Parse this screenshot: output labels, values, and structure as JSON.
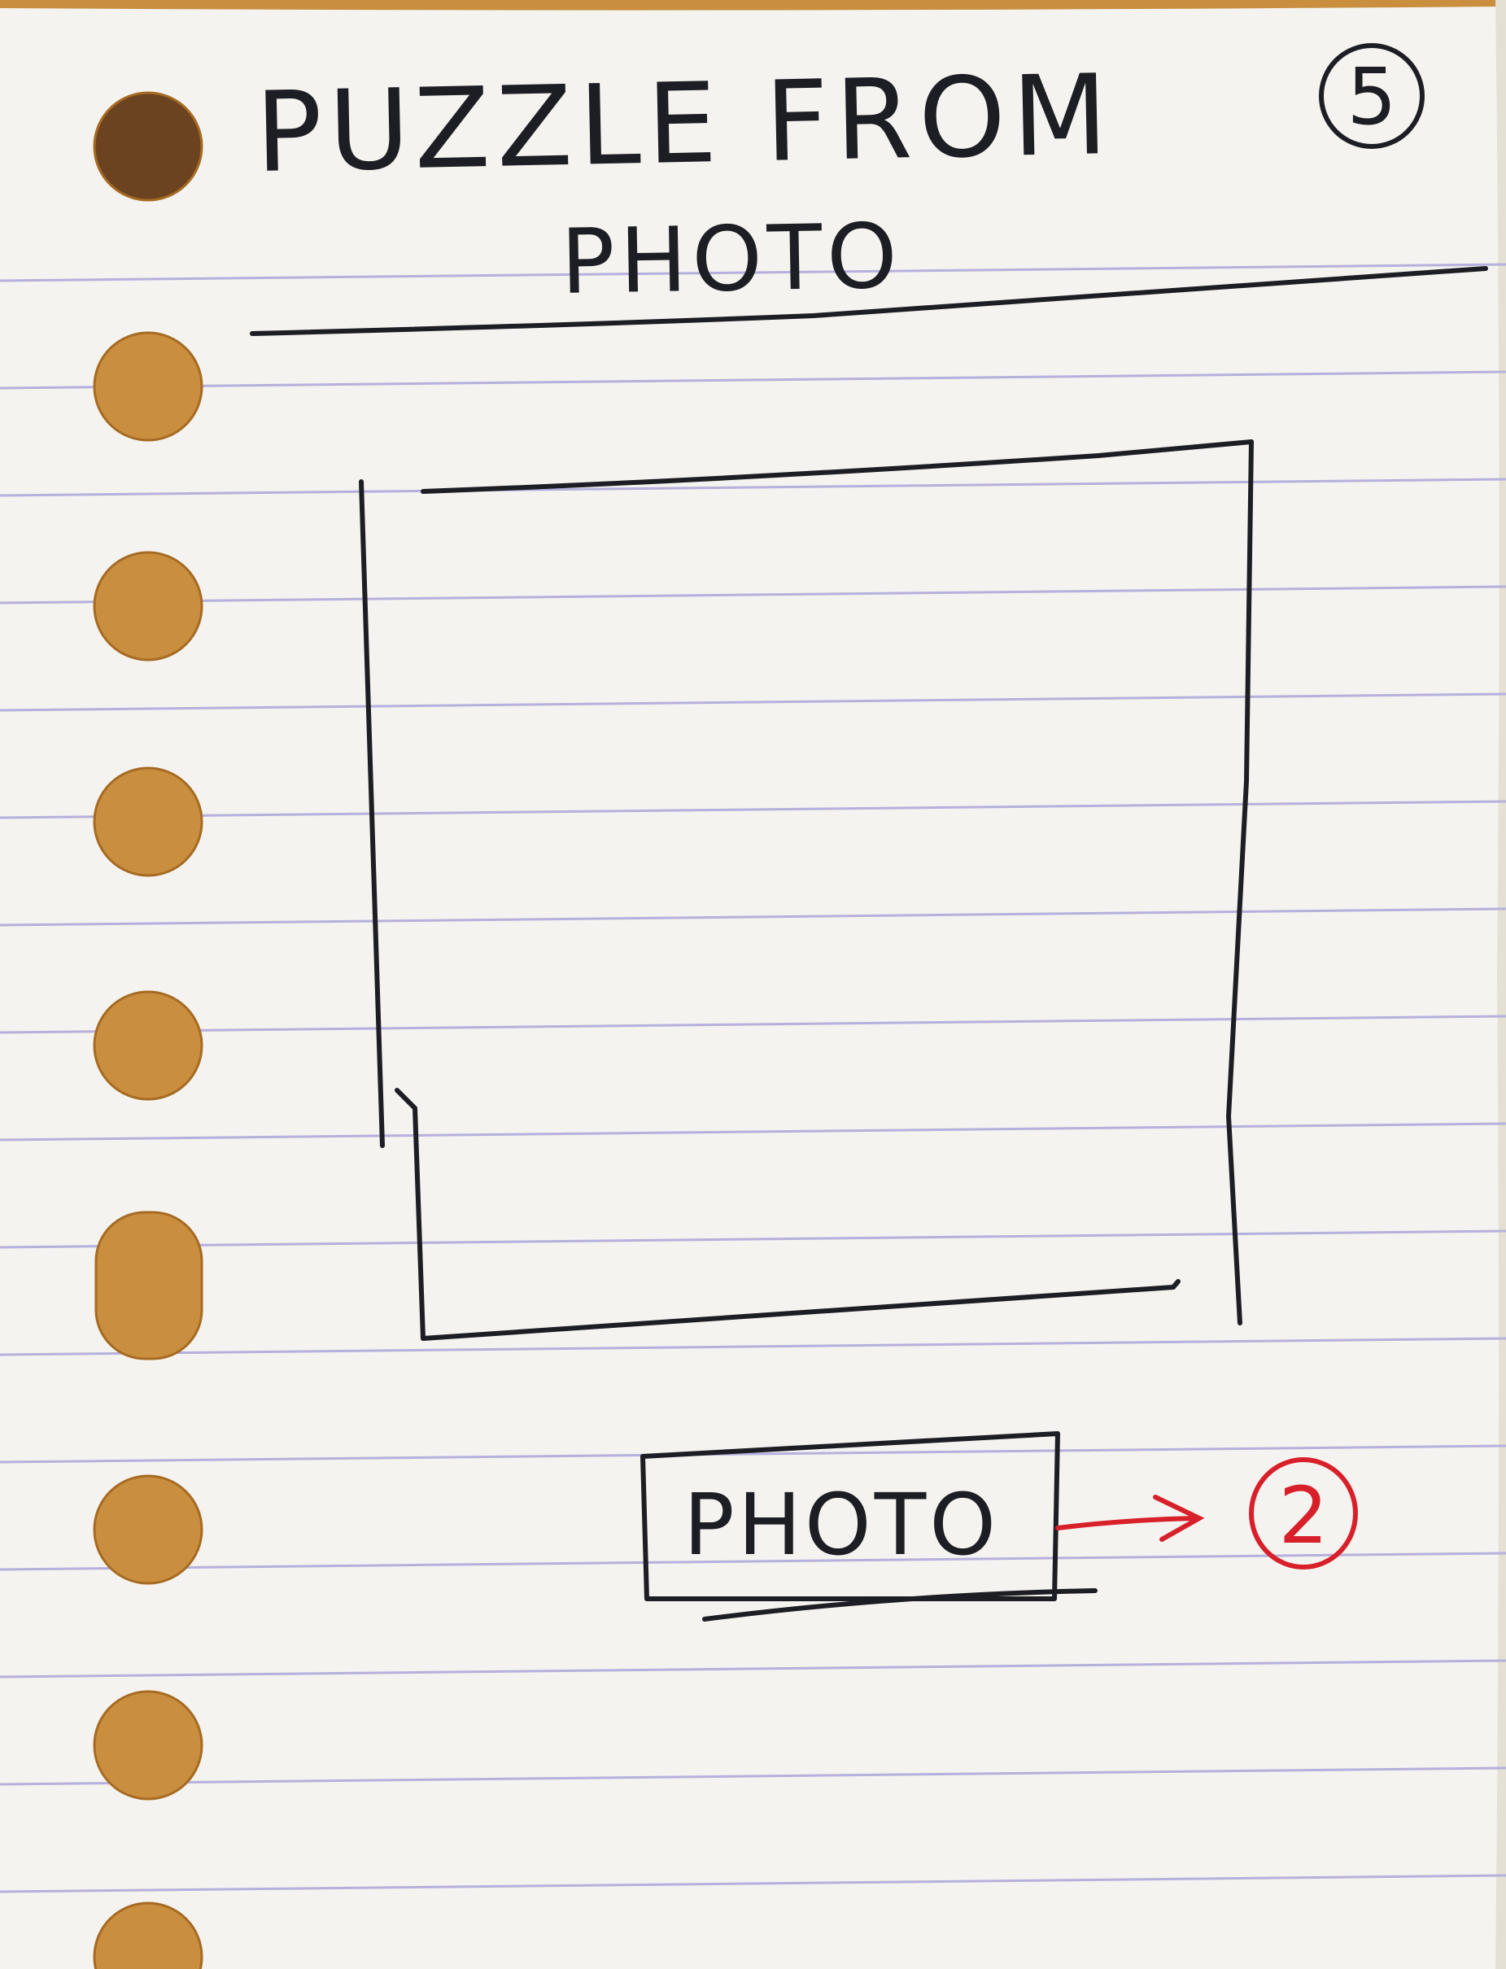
{
  "page": {
    "title_line1": "PUZZLE FROM",
    "title_line2": "PHOTO",
    "page_number": "5"
  },
  "puzzle_area": {
    "label": ""
  },
  "photo_button": {
    "label": "PHOTO",
    "target_screen": "2"
  },
  "colors": {
    "paper": "#f4f3ef",
    "ruling": "#b6b0dd",
    "ink": "#1d1d24",
    "red_ink": "#d8202a",
    "desk": "#c98f3e",
    "desk_dark": "#a66a22"
  }
}
